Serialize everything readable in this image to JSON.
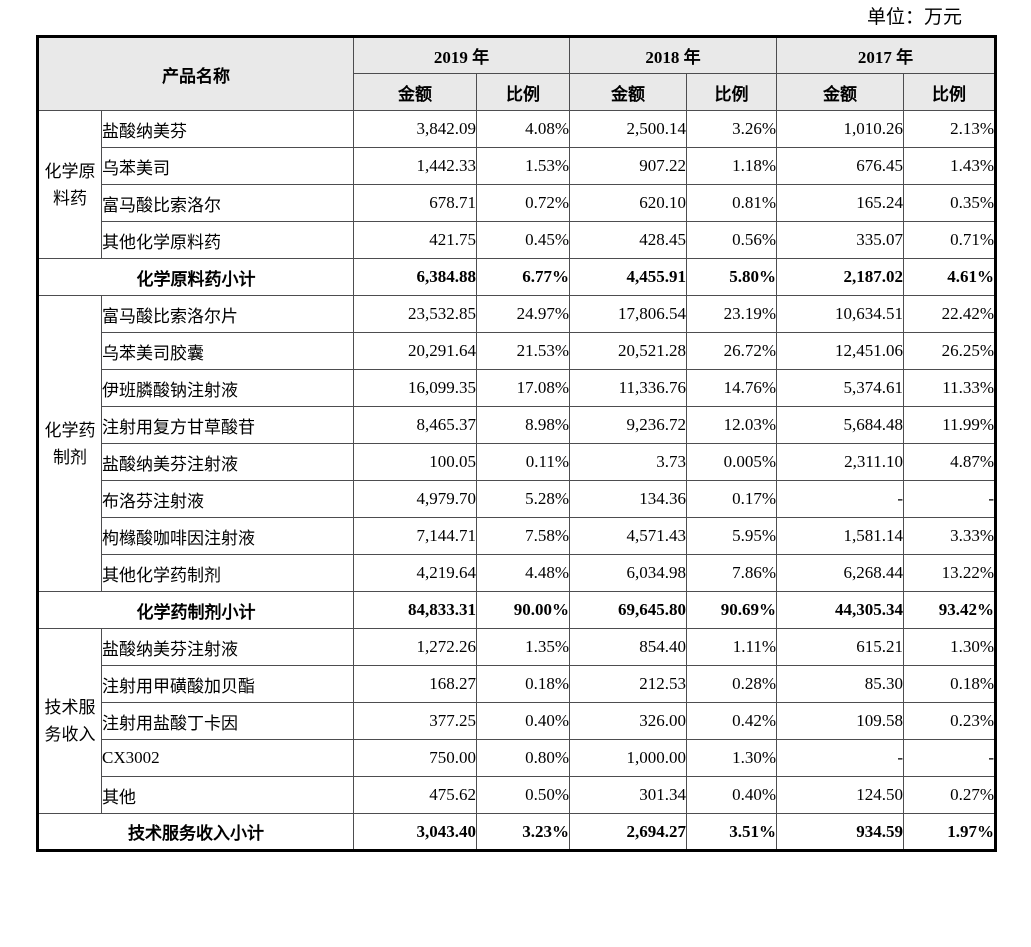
{
  "unit_label": "单位：万元",
  "table": {
    "header_bg": "#e9e9e9",
    "product_header": "产品名称",
    "year_headers": [
      "2019 年",
      "2018 年",
      "2017 年"
    ],
    "sub_headers": [
      "金额",
      "比例"
    ],
    "groups": [
      {
        "name": "化学原料药",
        "rows": [
          {
            "product": "盐酸纳美芬",
            "values": [
              "3,842.09",
              "4.08%",
              "2,500.14",
              "3.26%",
              "1,010.26",
              "2.13%"
            ]
          },
          {
            "product": "乌苯美司",
            "values": [
              "1,442.33",
              "1.53%",
              "907.22",
              "1.18%",
              "676.45",
              "1.43%"
            ]
          },
          {
            "product": "富马酸比索洛尔",
            "values": [
              "678.71",
              "0.72%",
              "620.10",
              "0.81%",
              "165.24",
              "0.35%"
            ]
          },
          {
            "product": "其他化学原料药",
            "values": [
              "421.75",
              "0.45%",
              "428.45",
              "0.56%",
              "335.07",
              "0.71%"
            ]
          }
        ],
        "subtotal": {
          "label": "化学原料药小计",
          "values": [
            "6,384.88",
            "6.77%",
            "4,455.91",
            "5.80%",
            "2,187.02",
            "4.61%"
          ]
        }
      },
      {
        "name": "化学药制剂",
        "rows": [
          {
            "product": "富马酸比索洛尔片",
            "values": [
              "23,532.85",
              "24.97%",
              "17,806.54",
              "23.19%",
              "10,634.51",
              "22.42%"
            ]
          },
          {
            "product": "乌苯美司胶囊",
            "values": [
              "20,291.64",
              "21.53%",
              "20,521.28",
              "26.72%",
              "12,451.06",
              "26.25%"
            ]
          },
          {
            "product": "伊班膦酸钠注射液",
            "values": [
              "16,099.35",
              "17.08%",
              "11,336.76",
              "14.76%",
              "5,374.61",
              "11.33%"
            ]
          },
          {
            "product": "注射用复方甘草酸苷",
            "values": [
              "8,465.37",
              "8.98%",
              "9,236.72",
              "12.03%",
              "5,684.48",
              "11.99%"
            ]
          },
          {
            "product": "盐酸纳美芬注射液",
            "values": [
              "100.05",
              "0.11%",
              "3.73",
              "0.005%",
              "2,311.10",
              "4.87%"
            ]
          },
          {
            "product": "布洛芬注射液",
            "values": [
              "4,979.70",
              "5.28%",
              "134.36",
              "0.17%",
              "-",
              "-"
            ]
          },
          {
            "product": "枸橼酸咖啡因注射液",
            "values": [
              "7,144.71",
              "7.58%",
              "4,571.43",
              "5.95%",
              "1,581.14",
              "3.33%"
            ]
          },
          {
            "product": "其他化学药制剂",
            "values": [
              "4,219.64",
              "4.48%",
              "6,034.98",
              "7.86%",
              "6,268.44",
              "13.22%"
            ]
          }
        ],
        "subtotal": {
          "label": "化学药制剂小计",
          "values": [
            "84,833.31",
            "90.00%",
            "69,645.80",
            "90.69%",
            "44,305.34",
            "93.42%"
          ]
        }
      },
      {
        "name": "技术服务收入",
        "rows": [
          {
            "product": "盐酸纳美芬注射液",
            "values": [
              "1,272.26",
              "1.35%",
              "854.40",
              "1.11%",
              "615.21",
              "1.30%"
            ]
          },
          {
            "product": "注射用甲磺酸加贝酯",
            "values": [
              "168.27",
              "0.18%",
              "212.53",
              "0.28%",
              "85.30",
              "0.18%"
            ]
          },
          {
            "product": "注射用盐酸丁卡因",
            "values": [
              "377.25",
              "0.40%",
              "326.00",
              "0.42%",
              "109.58",
              "0.23%"
            ]
          },
          {
            "product": "CX3002",
            "values": [
              "750.00",
              "0.80%",
              "1,000.00",
              "1.30%",
              "-",
              "-"
            ]
          },
          {
            "product": "其他",
            "values": [
              "475.62",
              "0.50%",
              "301.34",
              "0.40%",
              "124.50",
              "0.27%"
            ]
          }
        ],
        "subtotal": {
          "label": "技术服务收入小计",
          "values": [
            "3,043.40",
            "3.23%",
            "2,694.27",
            "3.51%",
            "934.59",
            "1.97%"
          ]
        }
      }
    ]
  }
}
